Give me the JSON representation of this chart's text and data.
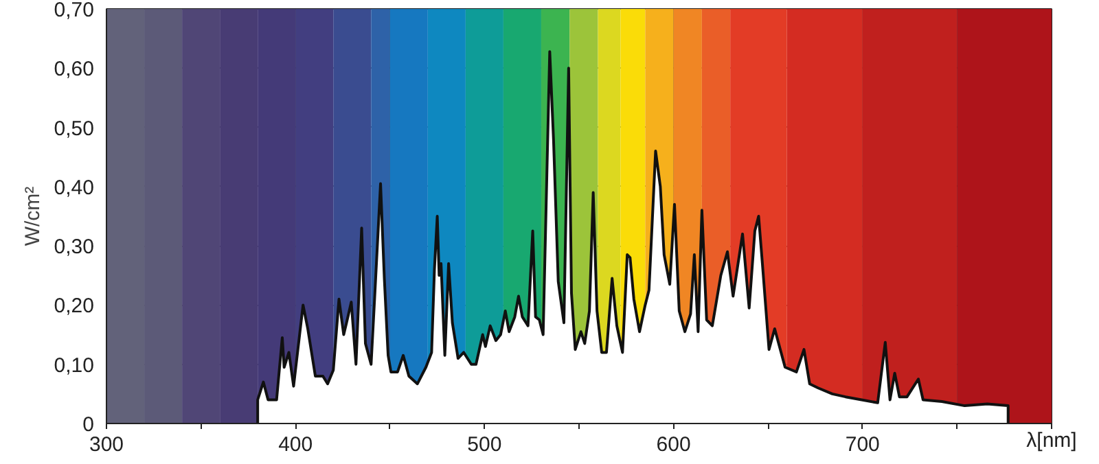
{
  "chart_data": {
    "type": "area",
    "xlabel": "λ[nm]",
    "ylabel": "W/cm²",
    "xlim": [
      300,
      800
    ],
    "ylim": [
      0,
      0.7
    ],
    "xticks": [
      300,
      {
        "value": 350,
        "label": null
      },
      400,
      {
        "value": 450,
        "label": null
      },
      500,
      {
        "value": 550,
        "label": null
      },
      600,
      {
        "value": 650,
        "label": null
      },
      700,
      {
        "value": 750,
        "label": null
      },
      {
        "value": 800,
        "label": null
      }
    ],
    "yticks": [
      0,
      {
        "value": 0.1,
        "label": "0,10"
      },
      {
        "value": 0.2,
        "label": "0,20"
      },
      {
        "value": 0.3,
        "label": "0,30"
      },
      {
        "value": 0.4,
        "label": "0,40"
      },
      {
        "value": 0.5,
        "label": "0,50"
      },
      {
        "value": 0.6,
        "label": "0,60"
      },
      {
        "value": 0.7,
        "label": "0,70"
      }
    ],
    "grid": true,
    "bands": [
      {
        "axis": "x",
        "from": 300,
        "to": 320,
        "color": "#62627a"
      },
      {
        "axis": "x",
        "from": 320,
        "to": 340,
        "color": "#5c5a78"
      },
      {
        "axis": "x",
        "from": 340,
        "to": 360,
        "color": "#504676"
      },
      {
        "axis": "x",
        "from": 360,
        "to": 380,
        "color": "#483c74"
      },
      {
        "axis": "x",
        "from": 380,
        "to": 400,
        "color": "#443a78"
      },
      {
        "axis": "x",
        "from": 400,
        "to": 420,
        "color": "#423e80"
      },
      {
        "axis": "x",
        "from": 420,
        "to": 440,
        "color": "#3a4c90"
      },
      {
        "axis": "x",
        "from": 440,
        "to": 450,
        "color": "#2e62a8"
      },
      {
        "axis": "x",
        "from": 450,
        "to": 470,
        "color": "#1678c0"
      },
      {
        "axis": "x",
        "from": 470,
        "to": 490,
        "color": "#0e88c0"
      },
      {
        "axis": "x",
        "from": 490,
        "to": 510,
        "color": "#0e9c98"
      },
      {
        "axis": "x",
        "from": 510,
        "to": 530,
        "color": "#18a870"
      },
      {
        "axis": "x",
        "from": 530,
        "to": 545,
        "color": "#3cb450"
      },
      {
        "axis": "x",
        "from": 545,
        "to": 560,
        "color": "#9cc43a"
      },
      {
        "axis": "x",
        "from": 560,
        "to": 572,
        "color": "#dcd820"
      },
      {
        "axis": "x",
        "from": 572,
        "to": 585,
        "color": "#fadc08"
      },
      {
        "axis": "x",
        "from": 585,
        "to": 600,
        "color": "#f6b01c"
      },
      {
        "axis": "x",
        "from": 600,
        "to": 615,
        "color": "#f08624"
      },
      {
        "axis": "x",
        "from": 615,
        "to": 630,
        "color": "#ea5e28"
      },
      {
        "axis": "x",
        "from": 630,
        "to": 660,
        "color": "#e33c26"
      },
      {
        "axis": "x",
        "from": 660,
        "to": 700,
        "color": "#d42c22"
      },
      {
        "axis": "x",
        "from": 700,
        "to": 750,
        "color": "#c0201e"
      },
      {
        "axis": "x",
        "from": 750,
        "to": 800,
        "color": "#ae141a"
      }
    ],
    "series": [
      {
        "color": "#ffffff",
        "x": [
          380,
          380,
          383,
          385.5,
          390,
          393,
          394,
          396.5,
          399,
          404,
          406.5,
          410.5,
          414.5,
          417,
          420,
          423,
          425.5,
          427,
          429.5,
          432,
          435,
          437,
          440,
          442,
          445,
          447,
          449,
          450.5,
          454,
          457,
          460,
          464.5,
          469,
          472,
          473.5,
          475,
          476,
          477,
          479,
          481,
          483,
          486,
          489,
          493,
          495.5,
          499,
          500.5,
          503,
          506,
          508.5,
          511,
          513,
          516,
          518,
          520,
          523,
          525.5,
          527,
          529,
          531,
          534.5,
          536.5,
          539,
          542,
          544.5,
          546,
          548,
          551,
          553,
          555.5,
          557.5,
          559.5,
          562,
          564.5,
          567.5,
          570,
          573,
          575.5,
          577,
          579,
          582,
          585,
          587,
          590.5,
          593,
          595,
          598,
          600.5,
          603,
          606,
          609,
          611,
          613,
          615,
          617.5,
          620.5,
          625,
          628.5,
          631.5,
          636.5,
          640,
          643,
          645,
          647,
          650.5,
          653.5,
          659,
          665,
          669,
          672,
          676.5,
          684,
          691,
          699.5,
          708,
          712,
          714.5,
          717,
          719.5,
          723.5,
          729.5,
          732,
          742,
          754,
          766,
          777,
          777
        ],
        "values": [
          0,
          0.04,
          0.07,
          0.04,
          0.04,
          0.145,
          0.095,
          0.12,
          0.063,
          0.2,
          0.16,
          0.08,
          0.08,
          0.067,
          0.09,
          0.21,
          0.15,
          0.17,
          0.205,
          0.1,
          0.33,
          0.135,
          0.1,
          0.22,
          0.405,
          0.245,
          0.115,
          0.087,
          0.087,
          0.115,
          0.08,
          0.067,
          0.095,
          0.12,
          0.26,
          0.35,
          0.25,
          0.27,
          0.115,
          0.27,
          0.17,
          0.11,
          0.12,
          0.1,
          0.1,
          0.15,
          0.13,
          0.165,
          0.14,
          0.15,
          0.19,
          0.155,
          0.18,
          0.215,
          0.18,
          0.165,
          0.325,
          0.18,
          0.175,
          0.15,
          0.628,
          0.48,
          0.24,
          0.17,
          0.6,
          0.22,
          0.125,
          0.155,
          0.135,
          0.19,
          0.39,
          0.19,
          0.12,
          0.12,
          0.245,
          0.165,
          0.12,
          0.285,
          0.28,
          0.21,
          0.155,
          0.2,
          0.225,
          0.46,
          0.4,
          0.285,
          0.235,
          0.37,
          0.19,
          0.155,
          0.185,
          0.285,
          0.155,
          0.36,
          0.175,
          0.165,
          0.25,
          0.29,
          0.215,
          0.32,
          0.195,
          0.325,
          0.35,
          0.27,
          0.125,
          0.16,
          0.095,
          0.087,
          0.125,
          0.067,
          0.06,
          0.05,
          0.045,
          0.04,
          0.035,
          0.137,
          0.04,
          0.085,
          0.045,
          0.045,
          0.075,
          0.04,
          0.037,
          0.03,
          0.033,
          0.03,
          0
        ]
      }
    ]
  }
}
